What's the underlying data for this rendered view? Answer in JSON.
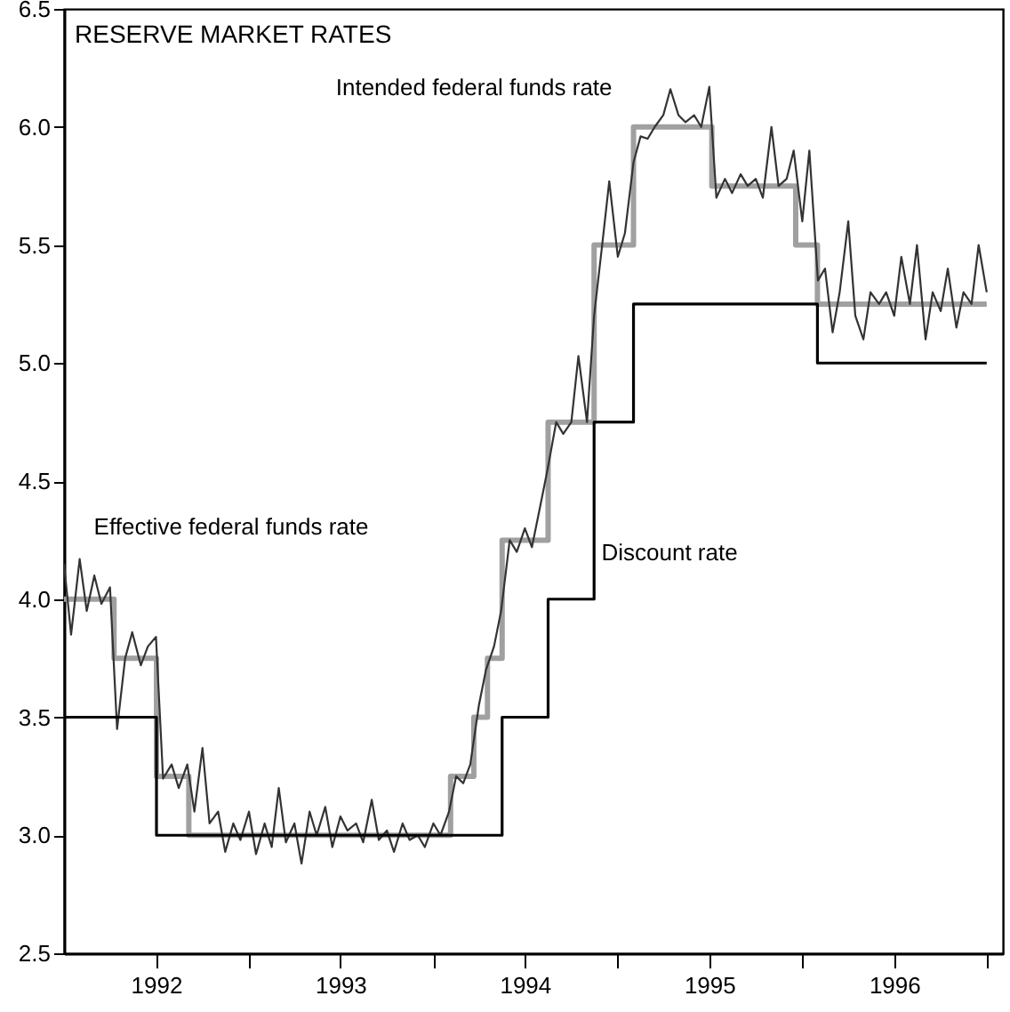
{
  "chart_data": {
    "type": "line",
    "title": "RESERVE MARKET RATES",
    "xlim": [
      "1992-01-01",
      "1997-02-01"
    ],
    "ylim": [
      2.5,
      6.5
    ],
    "xticks": [
      {
        "value": "1992-07-01",
        "label": "1992"
      },
      {
        "value": "1993-01-01",
        "label": null
      },
      {
        "value": "1993-07-01",
        "label": "1993"
      },
      {
        "value": "1994-01-01",
        "label": null
      },
      {
        "value": "1994-07-01",
        "label": "1994"
      },
      {
        "value": "1995-01-01",
        "label": null
      },
      {
        "value": "1995-07-01",
        "label": "1995"
      },
      {
        "value": "1996-01-01",
        "label": null
      },
      {
        "value": "1996-07-01",
        "label": "1996"
      },
      {
        "value": "1997-01-01",
        "label": null
      }
    ],
    "yticks": [
      {
        "value": 2.5,
        "label": "2.5"
      },
      {
        "value": 3,
        "label": "3.0"
      },
      {
        "value": 3.5,
        "label": "3.5"
      },
      {
        "value": 4,
        "label": "4.0"
      },
      {
        "value": 4.5,
        "label": "4.5"
      },
      {
        "value": 5,
        "label": "5.0"
      },
      {
        "value": 5.5,
        "label": "5.5"
      },
      {
        "value": 6,
        "label": "6.0"
      },
      {
        "value": 6.5,
        "label": "6.5"
      }
    ],
    "grid": false,
    "series": [
      {
        "name": "Intended federal funds rate",
        "type": "step",
        "color": "#a0a0a0",
        "x": [
          "1992-01-01",
          "1992-04-09",
          "1992-07-02",
          "1992-09-04",
          "1994-02-04",
          "1994-03-22",
          "1994-04-18",
          "1994-05-17",
          "1994-08-16",
          "1994-11-15",
          "1995-02-01",
          "1995-07-06",
          "1995-12-19",
          "1996-01-31",
          "1996-12-31"
        ],
        "values": [
          4,
          3.75,
          3.25,
          3,
          3.25,
          3.5,
          3.75,
          4.25,
          4.75,
          5.5,
          6,
          5.75,
          5.5,
          5.25,
          5.25
        ]
      },
      {
        "name": "Effective federal funds rate",
        "color": "#333333",
        "x": [
          "1992-01-01",
          "1992-01-15",
          "1992-02-01",
          "1992-02-15",
          "1992-03-01",
          "1992-03-15",
          "1992-04-01",
          "1992-04-15",
          "1992-05-01",
          "1992-05-15",
          "1992-06-01",
          "1992-06-15",
          "1992-07-01",
          "1992-07-15",
          "1992-08-01",
          "1992-08-15",
          "1992-09-01",
          "1992-09-15",
          "1992-10-01",
          "1992-10-15",
          "1992-11-01",
          "1992-11-15",
          "1992-12-01",
          "1992-12-15",
          "1993-01-01",
          "1993-01-15",
          "1993-02-01",
          "1993-02-15",
          "1993-03-01",
          "1993-03-15",
          "1993-04-01",
          "1993-04-15",
          "1993-05-01",
          "1993-05-15",
          "1993-06-01",
          "1993-06-15",
          "1993-07-01",
          "1993-07-15",
          "1993-08-01",
          "1993-08-15",
          "1993-09-01",
          "1993-09-15",
          "1993-10-01",
          "1993-10-15",
          "1993-11-01",
          "1993-11-15",
          "1993-12-01",
          "1993-12-15",
          "1994-01-01",
          "1994-01-15",
          "1994-02-01",
          "1994-02-15",
          "1994-03-01",
          "1994-03-15",
          "1994-04-01",
          "1994-04-15",
          "1994-05-01",
          "1994-05-15",
          "1994-06-01",
          "1994-06-15",
          "1994-07-01",
          "1994-07-15",
          "1994-08-01",
          "1994-08-15",
          "1994-09-01",
          "1994-09-15",
          "1994-10-01",
          "1994-10-15",
          "1994-11-01",
          "1994-11-15",
          "1994-12-01",
          "1994-12-15",
          "1995-01-01",
          "1995-01-15",
          "1995-02-01",
          "1995-02-15",
          "1995-03-01",
          "1995-03-15",
          "1995-04-01",
          "1995-04-15",
          "1995-05-01",
          "1995-05-15",
          "1995-06-01",
          "1995-06-15",
          "1995-07-01",
          "1995-07-15",
          "1995-08-01",
          "1995-08-15",
          "1995-09-01",
          "1995-09-15",
          "1995-10-01",
          "1995-10-15",
          "1995-11-01",
          "1995-11-15",
          "1995-12-01",
          "1995-12-15",
          "1996-01-01",
          "1996-01-15",
          "1996-02-01",
          "1996-02-15",
          "1996-03-01",
          "1996-03-15",
          "1996-04-01",
          "1996-04-15",
          "1996-05-01",
          "1996-05-15",
          "1996-06-01",
          "1996-06-15",
          "1996-07-01",
          "1996-07-15",
          "1996-08-01",
          "1996-08-15",
          "1996-09-01",
          "1996-09-15",
          "1996-10-01",
          "1996-10-15",
          "1996-11-01",
          "1996-11-15",
          "1996-12-01",
          "1996-12-15",
          "1996-12-31"
        ],
        "values": [
          4.15,
          3.85,
          4.17,
          3.95,
          4.1,
          3.98,
          4.05,
          3.45,
          3.75,
          3.86,
          3.72,
          3.8,
          3.84,
          3.24,
          3.3,
          3.2,
          3.3,
          3.1,
          3.37,
          3.05,
          3.1,
          2.93,
          3.05,
          2.98,
          3.1,
          2.92,
          3.05,
          2.95,
          3.2,
          2.97,
          3.05,
          2.88,
          3.1,
          3.0,
          3.12,
          2.95,
          3.08,
          3.02,
          3.05,
          2.97,
          3.15,
          2.98,
          3.02,
          2.93,
          3.05,
          2.98,
          3.0,
          2.95,
          3.05,
          3.0,
          3.1,
          3.25,
          3.22,
          3.3,
          3.55,
          3.7,
          3.8,
          3.95,
          4.25,
          4.2,
          4.3,
          4.22,
          4.4,
          4.55,
          4.75,
          4.7,
          4.75,
          5.03,
          4.75,
          5.2,
          5.5,
          5.77,
          5.45,
          5.55,
          5.85,
          5.96,
          5.95,
          6.0,
          6.05,
          6.16,
          6.05,
          6.02,
          6.05,
          6.0,
          6.17,
          5.7,
          5.78,
          5.72,
          5.8,
          5.75,
          5.78,
          5.7,
          6.0,
          5.75,
          5.78,
          5.9,
          5.6,
          5.9,
          5.35,
          5.4,
          5.13,
          5.3,
          5.6,
          5.2,
          5.1,
          5.3,
          5.25,
          5.3,
          5.2,
          5.45,
          5.25,
          5.5,
          5.1,
          5.3,
          5.22,
          5.4,
          5.15,
          5.3,
          5.25,
          5.5,
          5.3
        ]
      },
      {
        "name": "Discount rate",
        "type": "step",
        "color": "#000000",
        "x": [
          "1992-01-01",
          "1992-07-02",
          "1994-05-17",
          "1994-08-16",
          "1994-11-15",
          "1995-02-01",
          "1996-01-31",
          "1996-12-31"
        ],
        "values": [
          3.5,
          3,
          3.5,
          4,
          4.75,
          5.25,
          5,
          5
        ]
      }
    ]
  }
}
